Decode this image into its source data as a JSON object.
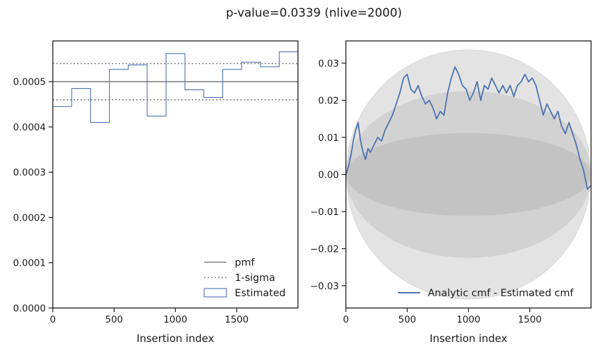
{
  "figure_title": "p-value=0.0339 (nlive=2000)",
  "colors": {
    "estimated": "#4c72b0",
    "pmf": "#808080",
    "band_outer": "#e3e3e3",
    "band_middle": "#d2d2d2",
    "band_inner": "#c3c3c3"
  },
  "chart_data": [
    {
      "type": "step-histogram",
      "xlabel": "Insertion index",
      "ylabel": "",
      "xlim": [
        0,
        2000
      ],
      "ylim": [
        0,
        0.00059
      ],
      "xticks": [
        0,
        500,
        1000,
        1500
      ],
      "xtick_labels": [
        "0",
        "500",
        "1000",
        "1500"
      ],
      "yticks": [
        0,
        0.0001,
        0.0002,
        0.0003,
        0.0004,
        0.0005
      ],
      "ytick_labels": [
        "0.0000",
        "0.0001",
        "0.0002",
        "0.0003",
        "0.0004",
        "0.0005"
      ],
      "bin_edges": [
        0,
        154,
        308,
        462,
        616,
        770,
        924,
        1078,
        1232,
        1386,
        1540,
        1694,
        1848,
        2000
      ],
      "estimated": [
        0.000445,
        0.000485,
        0.00041,
        0.000527,
        0.000537,
        0.000424,
        0.000562,
        0.000482,
        0.000465,
        0.000527,
        0.000543,
        0.000533,
        0.000566
      ],
      "pmf": 0.0005,
      "sigma_upper": 0.00054,
      "sigma_lower": 0.00046,
      "legend": {
        "location": "lower-right",
        "entries": [
          "pmf",
          "1-sigma",
          "Estimated"
        ]
      }
    },
    {
      "type": "line",
      "xlabel": "Insertion index",
      "ylabel": "",
      "xlim": [
        0,
        2000
      ],
      "ylim": [
        -0.036,
        0.036
      ],
      "xticks": [
        0,
        500,
        1000,
        1500
      ],
      "xtick_labels": [
        "0",
        "500",
        "1000",
        "1500"
      ],
      "yticks": [
        -0.03,
        -0.02,
        -0.01,
        0.0,
        0.01,
        0.02,
        0.03
      ],
      "ytick_labels": [
        "−0.03",
        "−0.02",
        "−0.01",
        "0.00",
        "0.01",
        "0.02",
        "0.03"
      ],
      "band_amplitudes": [
        0.0112,
        0.0224,
        0.0336
      ],
      "series": [
        {
          "name": "Analytic cmf - Estimated cmf",
          "x": [
            0,
            20,
            40,
            60,
            80,
            100,
            120,
            140,
            160,
            180,
            200,
            230,
            260,
            290,
            320,
            350,
            380,
            410,
            440,
            470,
            500,
            530,
            560,
            590,
            620,
            650,
            680,
            710,
            740,
            770,
            800,
            830,
            860,
            890,
            920,
            950,
            980,
            1010,
            1040,
            1070,
            1100,
            1130,
            1160,
            1190,
            1220,
            1250,
            1280,
            1310,
            1340,
            1370,
            1400,
            1430,
            1460,
            1490,
            1520,
            1550,
            1580,
            1610,
            1640,
            1670,
            1700,
            1730,
            1760,
            1790,
            1820,
            1850,
            1880,
            1910,
            1940,
            1970,
            2000
          ],
          "y": [
            0.0,
            0.002,
            0.005,
            0.009,
            0.012,
            0.014,
            0.009,
            0.006,
            0.004,
            0.007,
            0.006,
            0.008,
            0.01,
            0.009,
            0.012,
            0.014,
            0.016,
            0.019,
            0.022,
            0.026,
            0.027,
            0.023,
            0.022,
            0.024,
            0.021,
            0.019,
            0.02,
            0.018,
            0.015,
            0.017,
            0.016,
            0.022,
            0.026,
            0.029,
            0.027,
            0.024,
            0.023,
            0.02,
            0.022,
            0.025,
            0.02,
            0.024,
            0.023,
            0.026,
            0.024,
            0.022,
            0.024,
            0.022,
            0.024,
            0.021,
            0.024,
            0.025,
            0.027,
            0.025,
            0.026,
            0.024,
            0.02,
            0.016,
            0.019,
            0.017,
            0.015,
            0.017,
            0.013,
            0.011,
            0.014,
            0.011,
            0.008,
            0.004,
            0.001,
            -0.004,
            -0.003
          ]
        }
      ],
      "legend": {
        "location": "lower-right",
        "entries": [
          "Analytic cmf - Estimated cmf"
        ]
      }
    }
  ]
}
